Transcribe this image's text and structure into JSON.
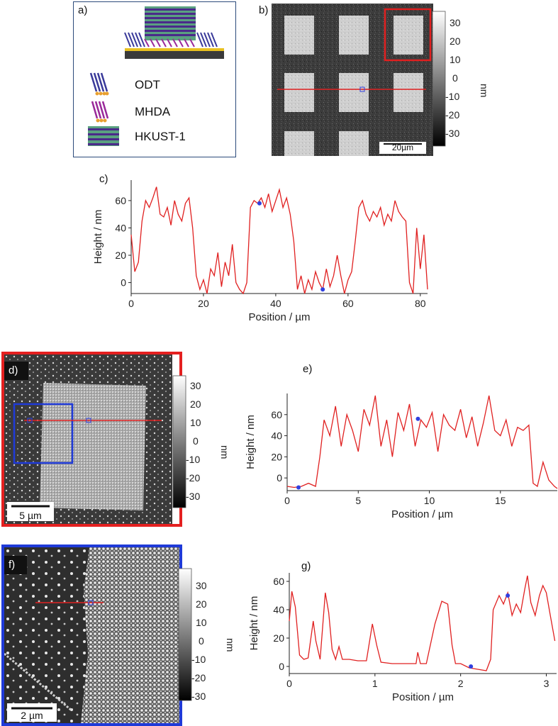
{
  "panel_a": {
    "label": "a)",
    "legend": [
      {
        "name": "ODT",
        "colors": [
          "#3a3a9a",
          "#e8a030"
        ]
      },
      {
        "name": "MHDA",
        "colors": [
          "#9a2a9a",
          "#e8a030"
        ]
      },
      {
        "name": "HKUST-1",
        "colors": [
          "#5a2a8a",
          "#5aa080"
        ]
      }
    ]
  },
  "panel_b": {
    "label": "b)",
    "scalebar": "20µm",
    "colorbar": {
      "ticks": [
        "30",
        "20",
        "10",
        "0",
        "-10",
        "-20",
        "-30"
      ],
      "unit": "nm"
    }
  },
  "panel_d": {
    "label": "d)",
    "scalebar": "5 µm",
    "colorbar": {
      "ticks": [
        "30",
        "20",
        "10",
        "0",
        "-10",
        "-20",
        "-30"
      ],
      "unit": "nm"
    }
  },
  "panel_f": {
    "label": "f)",
    "scalebar": "2 µm",
    "colorbar": {
      "ticks": [
        "30",
        "20",
        "10",
        "0",
        "-10",
        "-20",
        "-30"
      ],
      "unit": "nm"
    }
  },
  "chart_data": [
    {
      "id": "c",
      "label": "c)",
      "type": "line",
      "xlabel": "Position / µm",
      "ylabel": "Height / nm",
      "xlim": [
        0,
        82
      ],
      "ylim": [
        -8,
        75
      ],
      "xticks": [
        0,
        20,
        40,
        60,
        80
      ],
      "yticks": [
        0,
        20,
        40,
        60
      ],
      "markers": [
        {
          "x": 35.5,
          "y": 58
        },
        {
          "x": 53,
          "y": -5
        }
      ],
      "series": [
        {
          "name": "height",
          "color": "#e02020",
          "x": [
            0,
            1,
            2,
            3,
            4,
            5,
            6,
            7,
            8,
            9,
            10,
            11,
            12,
            13,
            14,
            15,
            16,
            17,
            18,
            19,
            20,
            21,
            22,
            23,
            24,
            25,
            26,
            27,
            28,
            29,
            30,
            31,
            32,
            33,
            34,
            35,
            36,
            37,
            38,
            39,
            40,
            41,
            42,
            43,
            44,
            45,
            46,
            47,
            48,
            49,
            50,
            51,
            52,
            53,
            54,
            55,
            56,
            57,
            58,
            59,
            60,
            61,
            62,
            63,
            64,
            65,
            66,
            67,
            68,
            69,
            70,
            71,
            72,
            73,
            74,
            75,
            76,
            77,
            78,
            79,
            80,
            81,
            82
          ],
          "y": [
            35,
            8,
            15,
            45,
            60,
            55,
            62,
            70,
            50,
            48,
            55,
            42,
            60,
            50,
            45,
            58,
            62,
            40,
            5,
            -5,
            2,
            -8,
            10,
            5,
            22,
            -3,
            15,
            5,
            28,
            0,
            -5,
            -8,
            0,
            55,
            60,
            58,
            62,
            55,
            65,
            52,
            60,
            68,
            55,
            62,
            50,
            30,
            -5,
            5,
            -8,
            2,
            -5,
            8,
            0,
            -5,
            10,
            -3,
            5,
            20,
            5,
            -8,
            2,
            8,
            30,
            55,
            60,
            50,
            45,
            52,
            48,
            55,
            42,
            50,
            45,
            60,
            52,
            48,
            45,
            0,
            -8,
            40,
            10,
            35,
            -5
          ]
        }
      ]
    },
    {
      "id": "e",
      "label": "e)",
      "type": "line",
      "xlabel": "Position / µm",
      "ylabel": "Height / nm",
      "xlim": [
        0,
        19
      ],
      "ylim": [
        -12,
        80
      ],
      "xticks": [
        0,
        5,
        10,
        15
      ],
      "yticks": [
        0,
        20,
        40,
        60
      ],
      "markers": [
        {
          "x": 0.8,
          "y": -9
        },
        {
          "x": 9.2,
          "y": 56
        }
      ],
      "series": [
        {
          "name": "height",
          "color": "#e02020",
          "x": [
            0,
            0.5,
            1,
            1.5,
            2,
            2.3,
            2.6,
            3,
            3.4,
            3.8,
            4.2,
            4.6,
            5,
            5.4,
            5.8,
            6.2,
            6.6,
            7,
            7.4,
            7.8,
            8.2,
            8.6,
            9,
            9.4,
            9.8,
            10.2,
            10.6,
            11,
            11.4,
            11.8,
            12.2,
            12.6,
            13,
            13.4,
            13.8,
            14.2,
            14.6,
            15,
            15.4,
            15.8,
            16.2,
            16.6,
            17,
            17.3,
            17.6,
            18,
            18.4,
            18.8,
            19
          ],
          "y": [
            -8,
            -9,
            -8,
            -5,
            -8,
            20,
            55,
            40,
            68,
            30,
            60,
            45,
            25,
            65,
            50,
            78,
            30,
            55,
            20,
            62,
            45,
            70,
            30,
            55,
            48,
            62,
            25,
            60,
            50,
            45,
            65,
            38,
            58,
            30,
            52,
            78,
            45,
            40,
            55,
            30,
            48,
            45,
            50,
            -5,
            -8,
            15,
            -2,
            -8,
            -10
          ]
        }
      ]
    },
    {
      "id": "g",
      "label": "g)",
      "type": "line",
      "xlabel": "Position / µm",
      "ylabel": "Height / nm",
      "xlim": [
        0,
        3.12
      ],
      "ylim": [
        -5,
        66
      ],
      "xticks": [
        0,
        1,
        2,
        3
      ],
      "yticks": [
        0,
        20,
        40,
        60
      ],
      "markers": [
        {
          "x": 2.12,
          "y": 0
        },
        {
          "x": 2.55,
          "y": 50
        }
      ],
      "series": [
        {
          "name": "height",
          "color": "#e02020",
          "x": [
            0,
            0.03,
            0.07,
            0.12,
            0.17,
            0.22,
            0.28,
            0.31,
            0.36,
            0.42,
            0.46,
            0.5,
            0.54,
            0.58,
            0.62,
            0.7,
            0.8,
            0.9,
            0.97,
            1.02,
            1.07,
            1.2,
            1.35,
            1.48,
            1.5,
            1.53,
            1.6,
            1.7,
            1.78,
            1.85,
            1.9,
            1.94,
            2.0,
            2.1,
            2.2,
            2.3,
            2.35,
            2.38,
            2.45,
            2.5,
            2.55,
            2.6,
            2.65,
            2.7,
            2.75,
            2.78,
            2.82,
            2.87,
            2.92,
            2.96,
            3.0,
            3.05,
            3.1
          ],
          "y": [
            32,
            53,
            42,
            8,
            5,
            6,
            32,
            18,
            5,
            52,
            38,
            12,
            5,
            14,
            5,
            5,
            4,
            4,
            30,
            15,
            3,
            2,
            2,
            2,
            10,
            2,
            2,
            30,
            46,
            44,
            15,
            2,
            2,
            -1,
            -2,
            -3,
            5,
            40,
            50,
            44,
            52,
            36,
            44,
            38,
            55,
            64,
            45,
            36,
            50,
            57,
            52,
            35,
            18
          ]
        }
      ]
    }
  ]
}
